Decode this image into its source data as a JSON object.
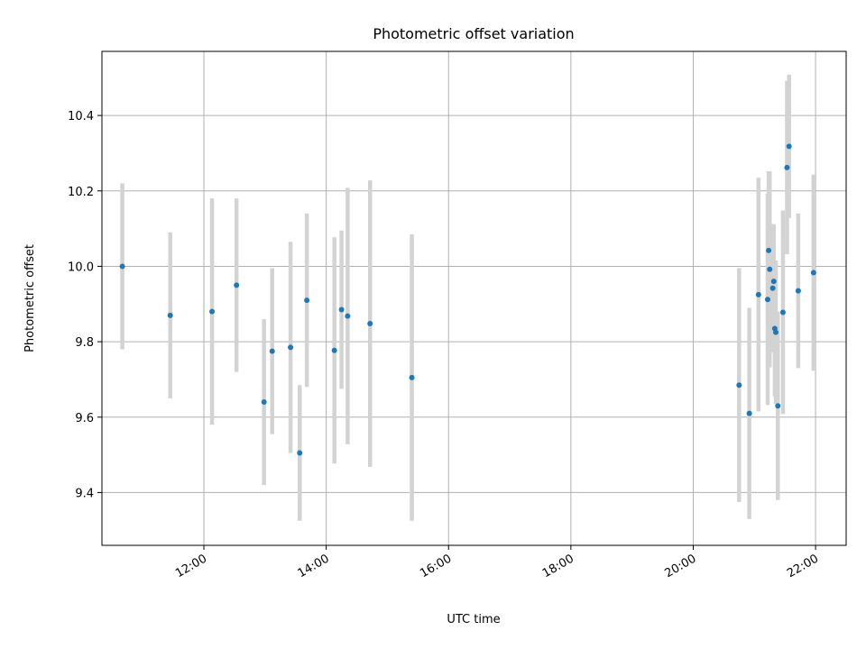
{
  "chart_data": {
    "type": "scatter",
    "title": "Photometric offset variation",
    "xlabel": "UTC time",
    "ylabel": "Photometric offset",
    "x_time_range": [
      "10:20",
      "22:30"
    ],
    "ylim": [
      9.26,
      10.57
    ],
    "x_ticks": [
      "12:00",
      "14:00",
      "16:00",
      "18:00",
      "20:00",
      "22:00"
    ],
    "y_ticks": [
      9.4,
      9.6,
      9.8,
      10.0,
      10.2,
      10.4
    ],
    "grid": true,
    "marker_color": "#1f77b4",
    "errorbar_color": "#d3d3d3",
    "points": [
      {
        "t": "10:40",
        "y": 10.0,
        "err": 0.22
      },
      {
        "t": "11:27",
        "y": 9.87,
        "err": 0.22
      },
      {
        "t": "12:08",
        "y": 9.88,
        "err": 0.3
      },
      {
        "t": "12:32",
        "y": 9.95,
        "err": 0.23
      },
      {
        "t": "12:59",
        "y": 9.64,
        "err": 0.22
      },
      {
        "t": "13:07",
        "y": 9.775,
        "err": 0.22
      },
      {
        "t": "13:25",
        "y": 9.785,
        "err": 0.28
      },
      {
        "t": "13:34",
        "y": 9.505,
        "err": 0.18
      },
      {
        "t": "13:41",
        "y": 9.91,
        "err": 0.23
      },
      {
        "t": "14:08",
        "y": 9.777,
        "err": 0.3
      },
      {
        "t": "14:15",
        "y": 9.885,
        "err": 0.21
      },
      {
        "t": "14:21",
        "y": 9.868,
        "err": 0.34
      },
      {
        "t": "14:43",
        "y": 9.848,
        "err": 0.38
      },
      {
        "t": "15:24",
        "y": 9.705,
        "err": 0.38
      },
      {
        "t": "20:45",
        "y": 9.685,
        "err": 0.31
      },
      {
        "t": "20:55",
        "y": 9.61,
        "err": 0.28
      },
      {
        "t": "21:04",
        "y": 9.925,
        "err": 0.31
      },
      {
        "t": "21:13",
        "y": 9.912,
        "err": 0.28
      },
      {
        "t": "21:14",
        "y": 10.042,
        "err": 0.21
      },
      {
        "t": "21:15",
        "y": 9.992,
        "err": 0.26
      },
      {
        "t": "21:18",
        "y": 9.942,
        "err": 0.17
      },
      {
        "t": "21:19",
        "y": 9.96,
        "err": 0.15
      },
      {
        "t": "21:20",
        "y": 9.835,
        "err": 0.18
      },
      {
        "t": "21:21",
        "y": 9.825,
        "err": 0.19
      },
      {
        "t": "21:23",
        "y": 9.63,
        "err": 0.25
      },
      {
        "t": "21:28",
        "y": 9.878,
        "err": 0.27
      },
      {
        "t": "21:32",
        "y": 10.262,
        "err": 0.23
      },
      {
        "t": "21:34",
        "y": 10.318,
        "err": 0.19
      },
      {
        "t": "21:43",
        "y": 9.935,
        "err": 0.205
      },
      {
        "t": "21:58",
        "y": 9.983,
        "err": 0.26
      }
    ]
  }
}
